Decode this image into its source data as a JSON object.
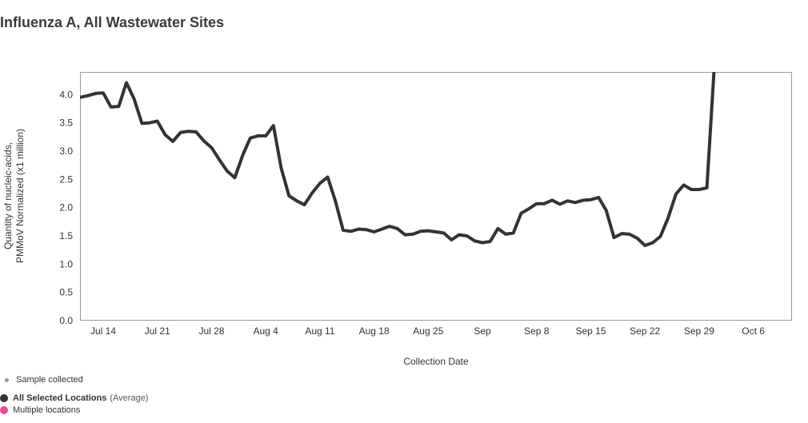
{
  "title": "Influenza A, All Wastewater Sites",
  "legend": {
    "sample_label": "Sample collected",
    "all_label": "All Selected Locations",
    "all_suffix": "(Average)",
    "multi_label": "Multiple locations",
    "colors": {
      "sample": "#999999",
      "all": "#333333",
      "multi": "#e0508a"
    }
  },
  "chart_data": {
    "type": "line",
    "xlabel": "Collection Date",
    "ylabel_lines": [
      "Quantity of nucleic-acids,",
      "PMMoV Normalized (x1 million)"
    ],
    "ylim": [
      0,
      4.4
    ],
    "y_ticks": [
      "0.0",
      "0.5",
      "1.0",
      "1.5",
      "2.0",
      "2.5",
      "3.0",
      "3.5",
      "4.0"
    ],
    "x_ticks": [
      {
        "label": "Jul 14",
        "date": "2024-07-14"
      },
      {
        "label": "Jul 21",
        "date": "2024-07-21"
      },
      {
        "label": "Jul 28",
        "date": "2024-07-28"
      },
      {
        "label": "Aug 4",
        "date": "2024-08-04"
      },
      {
        "label": "Aug 11",
        "date": "2024-08-11"
      },
      {
        "label": "Aug 18",
        "date": "2024-08-18"
      },
      {
        "label": "Aug 25",
        "date": "2024-08-25"
      },
      {
        "label": "Sep",
        "date": "2024-09-01"
      },
      {
        "label": "Sep 8",
        "date": "2024-09-08"
      },
      {
        "label": "Sep 15",
        "date": "2024-09-15"
      },
      {
        "label": "Sep 22",
        "date": "2024-09-22"
      },
      {
        "label": "Sep 29",
        "date": "2024-09-29"
      },
      {
        "label": "Oct 6",
        "date": "2024-10-06"
      }
    ],
    "xlim": [
      "2024-07-11",
      "2024-10-11"
    ],
    "grid": false,
    "legend_position": "bottom-left",
    "series": [
      {
        "name": "All Selected Locations",
        "color": "#333333",
        "points": [
          [
            "2024-07-11",
            3.95
          ],
          [
            "2024-07-12",
            3.98
          ],
          [
            "2024-07-13",
            4.02
          ],
          [
            "2024-07-14",
            4.03
          ],
          [
            "2024-07-15",
            3.78
          ],
          [
            "2024-07-16",
            3.79
          ],
          [
            "2024-07-17",
            4.21
          ],
          [
            "2024-07-18",
            3.92
          ],
          [
            "2024-07-19",
            3.49
          ],
          [
            "2024-07-20",
            3.5
          ],
          [
            "2024-07-21",
            3.53
          ],
          [
            "2024-07-22",
            3.29
          ],
          [
            "2024-07-23",
            3.17
          ],
          [
            "2024-07-24",
            3.33
          ],
          [
            "2024-07-25",
            3.35
          ],
          [
            "2024-07-26",
            3.34
          ],
          [
            "2024-07-27",
            3.18
          ],
          [
            "2024-07-28",
            3.06
          ],
          [
            "2024-07-29",
            2.85
          ],
          [
            "2024-07-30",
            2.65
          ],
          [
            "2024-07-31",
            2.53
          ],
          [
            "2024-08-01",
            2.92
          ],
          [
            "2024-08-02",
            3.23
          ],
          [
            "2024-08-03",
            3.27
          ],
          [
            "2024-08-04",
            3.27
          ],
          [
            "2024-08-05",
            3.45
          ],
          [
            "2024-08-06",
            2.7
          ],
          [
            "2024-08-07",
            2.21
          ],
          [
            "2024-08-08",
            2.12
          ],
          [
            "2024-08-09",
            2.05
          ],
          [
            "2024-08-10",
            2.26
          ],
          [
            "2024-08-11",
            2.43
          ],
          [
            "2024-08-12",
            2.54
          ],
          [
            "2024-08-13",
            2.12
          ],
          [
            "2024-08-14",
            1.6
          ],
          [
            "2024-08-15",
            1.58
          ],
          [
            "2024-08-16",
            1.62
          ],
          [
            "2024-08-17",
            1.61
          ],
          [
            "2024-08-18",
            1.57
          ],
          [
            "2024-08-19",
            1.62
          ],
          [
            "2024-08-20",
            1.67
          ],
          [
            "2024-08-21",
            1.63
          ],
          [
            "2024-08-22",
            1.52
          ],
          [
            "2024-08-23",
            1.53
          ],
          [
            "2024-08-24",
            1.58
          ],
          [
            "2024-08-25",
            1.59
          ],
          [
            "2024-08-26",
            1.57
          ],
          [
            "2024-08-27",
            1.55
          ],
          [
            "2024-08-28",
            1.43
          ],
          [
            "2024-08-29",
            1.52
          ],
          [
            "2024-08-30",
            1.5
          ],
          [
            "2024-08-31",
            1.41
          ],
          [
            "2024-09-01",
            1.38
          ],
          [
            "2024-09-02",
            1.4
          ],
          [
            "2024-09-03",
            1.63
          ],
          [
            "2024-09-04",
            1.53
          ],
          [
            "2024-09-05",
            1.55
          ],
          [
            "2024-09-06",
            1.9
          ],
          [
            "2024-09-07",
            1.98
          ],
          [
            "2024-09-08",
            2.07
          ],
          [
            "2024-09-09",
            2.07
          ],
          [
            "2024-09-10",
            2.13
          ],
          [
            "2024-09-11",
            2.06
          ],
          [
            "2024-09-12",
            2.12
          ],
          [
            "2024-09-13",
            2.09
          ],
          [
            "2024-09-14",
            2.13
          ],
          [
            "2024-09-15",
            2.14
          ],
          [
            "2024-09-16",
            2.18
          ],
          [
            "2024-09-17",
            1.95
          ],
          [
            "2024-09-18",
            1.47
          ],
          [
            "2024-09-19",
            1.54
          ],
          [
            "2024-09-20",
            1.53
          ],
          [
            "2024-09-21",
            1.46
          ],
          [
            "2024-09-22",
            1.33
          ],
          [
            "2024-09-23",
            1.38
          ],
          [
            "2024-09-24",
            1.49
          ],
          [
            "2024-09-25",
            1.82
          ],
          [
            "2024-09-26",
            2.24
          ],
          [
            "2024-09-27",
            2.4
          ],
          [
            "2024-09-28",
            2.32
          ],
          [
            "2024-09-29",
            2.32
          ],
          [
            "2024-09-30",
            2.35
          ],
          [
            "2024-10-01",
            4.6
          ]
        ]
      }
    ]
  }
}
